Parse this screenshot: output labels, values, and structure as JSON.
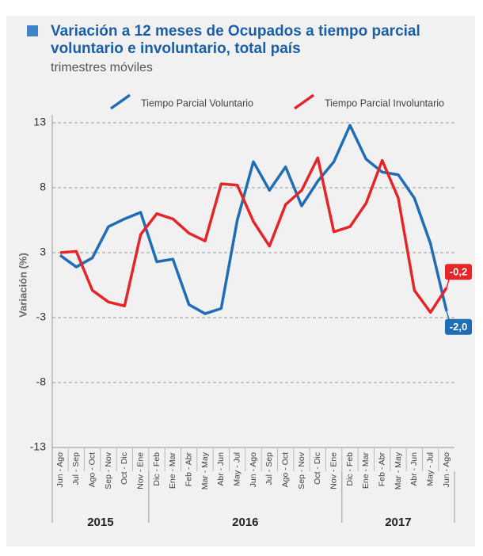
{
  "chart_data": {
    "type": "line",
    "title": [
      "Variación a 12 meses de Ocupados a tiempo parcial",
      "voluntario e involuntario, total país"
    ],
    "subtitle": "trimestres móviles",
    "y_label": "Variación (%)",
    "categories": [
      "Jun - Ago",
      "Jul - Sep",
      "Ago - Oct",
      "Sep - Nov",
      "Oct - Dic",
      "Nov - Ene",
      "Dic - Feb",
      "Ene - Mar",
      "Feb - Abr",
      "Mar - May",
      "Abr - Jun",
      "May - Jul",
      "Jun - Ago",
      "Jul - Sep",
      "Ago - Oct",
      "Sep - Nov",
      "Oct - Dic",
      "Nov - Ene",
      "Dic - Feb",
      "Ene - Mar",
      "Feb - Abr",
      "Mar - May",
      "Abr - Jun",
      "May - Jul",
      "Jun - Ago"
    ],
    "year_groups": [
      {
        "label": "2015",
        "start": 0,
        "end": 5
      },
      {
        "label": "2016",
        "start": 6,
        "end": 17
      },
      {
        "label": "2017",
        "start": 18,
        "end": 24
      }
    ],
    "series": [
      {
        "name": "Tiempo Parcial Voluntario",
        "color": "#1f6db4",
        "values": [
          2.3,
          1.4,
          2.1,
          4.5,
          5.1,
          5.6,
          1.8,
          2.0,
          -1.5,
          -2.2,
          -1.8,
          5.0,
          9.5,
          7.3,
          9.1,
          6.1,
          8.0,
          9.5,
          12.3,
          9.7,
          8.7,
          8.5,
          6.7,
          3.2,
          -2.0
        ],
        "value_labels": [
          null,
          null,
          null,
          null,
          null,
          null,
          null,
          null,
          null,
          null,
          null,
          null,
          null,
          null,
          null,
          null,
          null,
          null,
          null,
          null,
          null,
          null,
          null,
          null,
          "-2,0"
        ]
      },
      {
        "name": "Tiempo Parcial Involuntario",
        "color": "#e52629",
        "values": [
          2.5,
          2.6,
          -0.4,
          -1.3,
          -1.6,
          3.9,
          5.5,
          5.1,
          4.0,
          3.4,
          7.8,
          7.7,
          4.9,
          3.0,
          6.2,
          7.3,
          9.8,
          4.1,
          4.5,
          6.3,
          9.6,
          6.7,
          -0.4,
          -2.1,
          -0.2
        ],
        "value_labels": [
          null,
          null,
          null,
          null,
          null,
          null,
          null,
          null,
          null,
          null,
          null,
          null,
          null,
          null,
          null,
          null,
          null,
          null,
          null,
          null,
          null,
          null,
          null,
          null,
          "-0,2"
        ]
      }
    ],
    "ylim": [
      -12.5,
      12.5
    ],
    "yticks": [
      {
        "value": 12.5,
        "label": "13"
      },
      {
        "value": 7.5,
        "label": "8"
      },
      {
        "value": 2.5,
        "label": "3"
      },
      {
        "value": -2.5,
        "label": "-3"
      },
      {
        "value": -7.5,
        "label": "-8"
      },
      {
        "value": -12.5,
        "label": "-13"
      }
    ],
    "grid": true
  }
}
